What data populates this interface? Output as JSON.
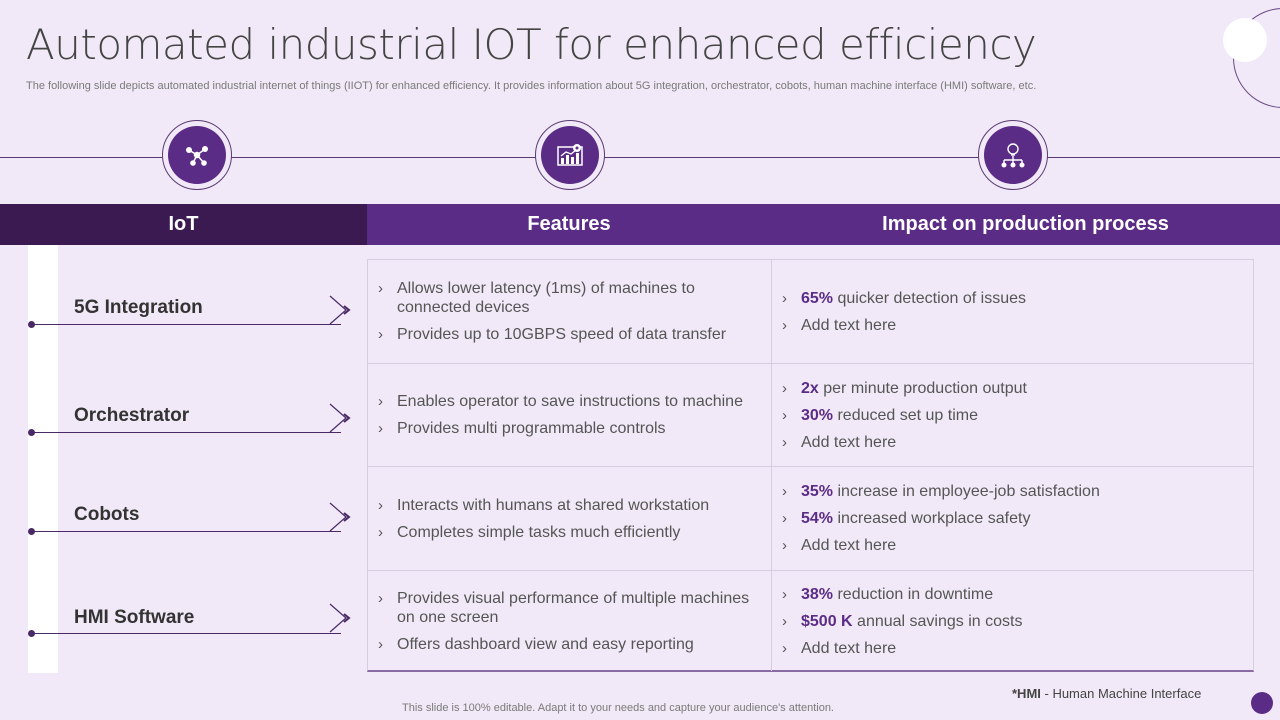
{
  "slide": {
    "title": "Automated industrial IOT for enhanced efficiency",
    "subtitle": "The following slide depicts automated industrial internet of things (IIOT) for enhanced efficiency. It provides information about 5G integration, orchestrator, cobots, human machine interface (HMI) software, etc."
  },
  "icons": [
    "network-icon",
    "chart-gear-icon",
    "bulb-hierarchy-icon"
  ],
  "table": {
    "headers": {
      "iot": "IoT",
      "features": "Features",
      "impact": "Impact on production process"
    },
    "rows": [
      {
        "iot": "5G Integration",
        "features": [
          "Allows lower latency (1ms) of machines to connected devices",
          "Provides up to 10GBPS speed of data transfer"
        ],
        "impact": [
          {
            "highlight": "65%",
            "text": " quicker detection of issues"
          },
          {
            "highlight": "",
            "text": "Add text here"
          }
        ]
      },
      {
        "iot": "Orchestrator",
        "features": [
          "Enables operator to save instructions to machine",
          "Provides multi programmable controls"
        ],
        "impact": [
          {
            "highlight": "2x",
            "text": " per minute production output"
          },
          {
            "highlight": "30%",
            "text": " reduced set up time"
          },
          {
            "highlight": "",
            "text": "Add text here"
          }
        ]
      },
      {
        "iot": "Cobots",
        "features": [
          "Interacts with humans at shared workstation",
          "Completes simple tasks much efficiently"
        ],
        "impact": [
          {
            "highlight": "35%",
            "text": " increase in employee-job satisfaction"
          },
          {
            "highlight": "54%",
            "text": " increased workplace safety"
          },
          {
            "highlight": "",
            "text": "Add text here"
          }
        ]
      },
      {
        "iot": "HMI Software",
        "features": [
          "Provides visual performance of multiple machines on one screen",
          "Offers dashboard view and easy reporting"
        ],
        "impact": [
          {
            "highlight": "38%",
            "text": " reduction in downtime"
          },
          {
            "highlight": "$500 K",
            "text": " annual savings in costs"
          },
          {
            "highlight": "",
            "text": "Add text here"
          }
        ]
      }
    ]
  },
  "footnote": {
    "abbr": "*HMI",
    "text": " - Human Machine Interface"
  },
  "bottom_note": "This slide is 100% editable. Adapt it to your needs and capture your audience's attention.",
  "colors": {
    "accent": "#5b2c86",
    "dark": "#3b1a52",
    "background": "#f1e9f7"
  }
}
